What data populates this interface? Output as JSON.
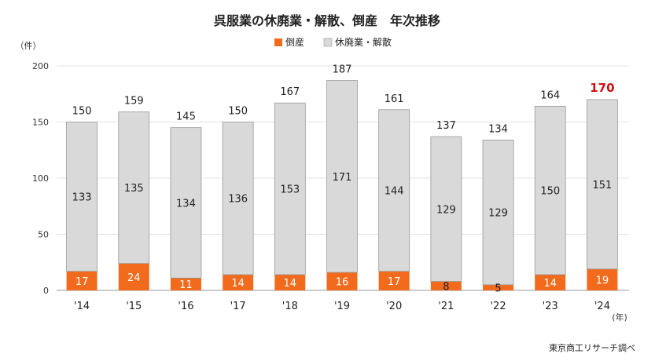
{
  "chart_data": {
    "type": "bar",
    "stacked": true,
    "title": "呉服業の休廃業・解散、倒産　年次推移",
    "ylabel": "（件）",
    "xunit": "(年)",
    "ylim": [
      0,
      200
    ],
    "yticks": [
      0,
      50,
      100,
      150,
      200
    ],
    "categories": [
      "'14",
      "'15",
      "'16",
      "'17",
      "'18",
      "'19",
      "'20",
      "'21",
      "'22",
      "'23",
      "'24"
    ],
    "series": [
      {
        "name": "倒産",
        "color": "#f26b1d",
        "values": [
          17,
          24,
          11,
          14,
          14,
          16,
          17,
          8,
          5,
          14,
          19
        ]
      },
      {
        "name": "休廃業・解散",
        "color": "#d9d9d9",
        "values": [
          133,
          135,
          134,
          136,
          153,
          171,
          144,
          129,
          129,
          150,
          151
        ]
      }
    ],
    "totals": [
      150,
      159,
      145,
      150,
      167,
      187,
      161,
      137,
      134,
      164,
      170
    ],
    "highlight_index": 10,
    "highlight_color": "#cc1111",
    "grid": true,
    "legend": "top-center",
    "source": "東京商工リサーチ調べ"
  }
}
